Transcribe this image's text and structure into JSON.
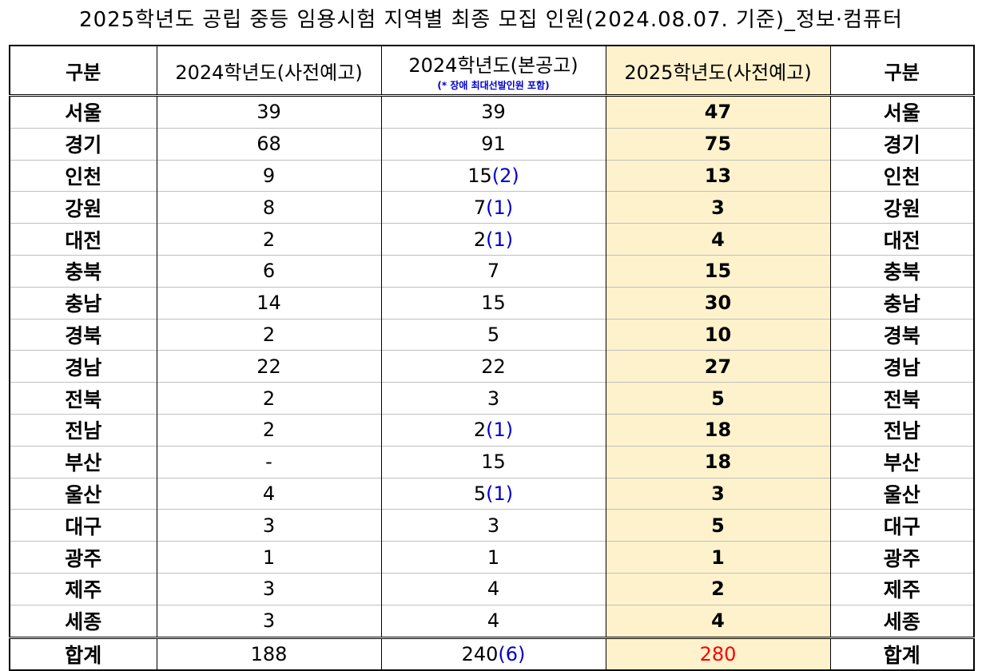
{
  "title": "2025학년도 공립 중등 임용시험 지역별 최종 모집 인원(2024.08.07. 기준)_정보·컴퓨터",
  "headers": {
    "region_left": "구분",
    "col_2024_pre": "2024학년도(사전예고)",
    "col_2024_main": "2024학년도(본공고)",
    "col_2024_main_note": "(* 장애 최대선발인원 포함)",
    "col_2025_pre": "2025학년도(사전예고)",
    "region_right": "구분"
  },
  "rows": [
    {
      "region": "서울",
      "pre2024": "39",
      "main2024": "39",
      "main2024_paren": "",
      "pre2025": "47"
    },
    {
      "region": "경기",
      "pre2024": "68",
      "main2024": "91",
      "main2024_paren": "",
      "pre2025": "75"
    },
    {
      "region": "인천",
      "pre2024": "9",
      "main2024": "15",
      "main2024_paren": "(2)",
      "pre2025": "13"
    },
    {
      "region": "강원",
      "pre2024": "8",
      "main2024": "7",
      "main2024_paren": "(1)",
      "pre2025": "3"
    },
    {
      "region": "대전",
      "pre2024": "2",
      "main2024": "2",
      "main2024_paren": "(1)",
      "pre2025": "4"
    },
    {
      "region": "충북",
      "pre2024": "6",
      "main2024": "7",
      "main2024_paren": "",
      "pre2025": "15"
    },
    {
      "region": "충남",
      "pre2024": "14",
      "main2024": "15",
      "main2024_paren": "",
      "pre2025": "30"
    },
    {
      "region": "경북",
      "pre2024": "2",
      "main2024": "5",
      "main2024_paren": "",
      "pre2025": "10"
    },
    {
      "region": "경남",
      "pre2024": "22",
      "main2024": "22",
      "main2024_paren": "",
      "pre2025": "27"
    },
    {
      "region": "전북",
      "pre2024": "2",
      "main2024": "3",
      "main2024_paren": "",
      "pre2025": "5"
    },
    {
      "region": "전남",
      "pre2024": "2",
      "main2024": "2",
      "main2024_paren": "(1)",
      "pre2025": "18"
    },
    {
      "region": "부산",
      "pre2024": "-",
      "main2024": "15",
      "main2024_paren": "",
      "pre2025": "18"
    },
    {
      "region": "울산",
      "pre2024": "4",
      "main2024": "5",
      "main2024_paren": "(1)",
      "pre2025": "3"
    },
    {
      "region": "대구",
      "pre2024": "3",
      "main2024": "3",
      "main2024_paren": "",
      "pre2025": "5"
    },
    {
      "region": "광주",
      "pre2024": "1",
      "main2024": "1",
      "main2024_paren": "",
      "pre2025": "1"
    },
    {
      "region": "제주",
      "pre2024": "3",
      "main2024": "4",
      "main2024_paren": "",
      "pre2025": "2"
    },
    {
      "region": "세종",
      "pre2024": "3",
      "main2024": "4",
      "main2024_paren": "",
      "pre2025": "4"
    }
  ],
  "total": {
    "region": "합계",
    "pre2024": "188",
    "main2024": "240",
    "main2024_paren": "(6)",
    "pre2025": "280"
  },
  "colors": {
    "highlight": "#fef2cc",
    "paren_blue": "#0000cc",
    "total_red": "#ff0000"
  }
}
